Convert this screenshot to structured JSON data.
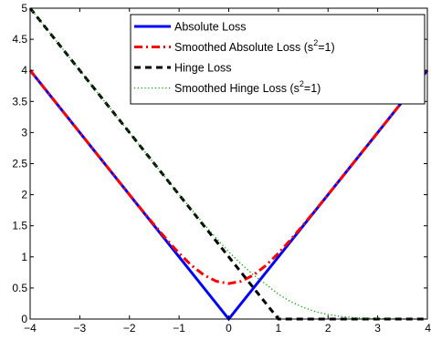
{
  "chart_data": {
    "type": "line",
    "title": "",
    "xlabel": "",
    "ylabel": "",
    "xlim": [
      -4,
      4
    ],
    "ylim": [
      0,
      5
    ],
    "xticks": [
      "−4",
      "−3",
      "−2",
      "−1",
      "0",
      "1",
      "2",
      "3",
      "4"
    ],
    "yticks": [
      "0",
      "0.5",
      "1",
      "1.5",
      "2",
      "2.5",
      "3",
      "3.5",
      "4",
      "4.5",
      "5"
    ],
    "grid": false,
    "legend_position": "top-right",
    "series": [
      {
        "name": "Absolute Loss",
        "legend_parts": [
          "Absolute Loss"
        ],
        "color": "#0000ff",
        "style": "solid",
        "x": [
          -4,
          -3,
          -2,
          -1,
          0,
          1,
          2,
          3,
          4
        ],
        "y": [
          4,
          3,
          2,
          1,
          0,
          1,
          2,
          3,
          4
        ]
      },
      {
        "name": "Smoothed Absolute Loss (s^2=1)",
        "legend_parts": [
          "Smoothed Absolute Loss (s",
          "2",
          "=1)"
        ],
        "color": "#ff0000",
        "style": "dashdot",
        "x": [
          -4,
          -3.5,
          -3,
          -2.5,
          -2,
          -1.75,
          -1.5,
          -1.25,
          -1,
          -0.75,
          -0.5,
          -0.25,
          0,
          0.25,
          0.5,
          0.75,
          1,
          1.25,
          1.5,
          1.75,
          2,
          2.5,
          3,
          3.5,
          4
        ],
        "y": [
          4.0,
          3.5,
          3.0,
          2.5,
          2.0,
          1.755,
          1.514,
          1.279,
          1.058,
          0.863,
          0.708,
          0.607,
          0.571,
          0.607,
          0.708,
          0.863,
          1.058,
          1.279,
          1.514,
          1.755,
          2.0,
          2.5,
          3.0,
          3.5,
          4.0
        ]
      },
      {
        "name": "Hinge Loss",
        "legend_parts": [
          "Hinge Loss"
        ],
        "color": "#000000",
        "style": "dashed",
        "x": [
          -4,
          1,
          4
        ],
        "y": [
          5,
          0,
          0
        ]
      },
      {
        "name": "Smoothed Hinge Loss (s^2=1)",
        "legend_parts": [
          "Smoothed Hinge Loss (s",
          "2",
          "=1)"
        ],
        "color": "#009900",
        "style": "dotted",
        "x": [
          -4,
          -3.5,
          -3,
          -2.5,
          -2,
          -1.5,
          -1,
          -0.75,
          -0.5,
          -0.25,
          0,
          0.25,
          0.5,
          0.75,
          1,
          1.25,
          1.5,
          1.75,
          2,
          2.25,
          2.5,
          3,
          3.5,
          4
        ],
        "y": [
          5.0,
          4.5,
          4.0,
          3.5,
          3.0,
          2.5,
          2.004,
          1.764,
          1.528,
          1.299,
          1.083,
          0.884,
          0.709,
          0.56,
          0.399,
          0.279,
          0.187,
          0.119,
          0.073,
          0.042,
          0.023,
          0.006,
          0.001,
          0.0
        ]
      }
    ]
  }
}
